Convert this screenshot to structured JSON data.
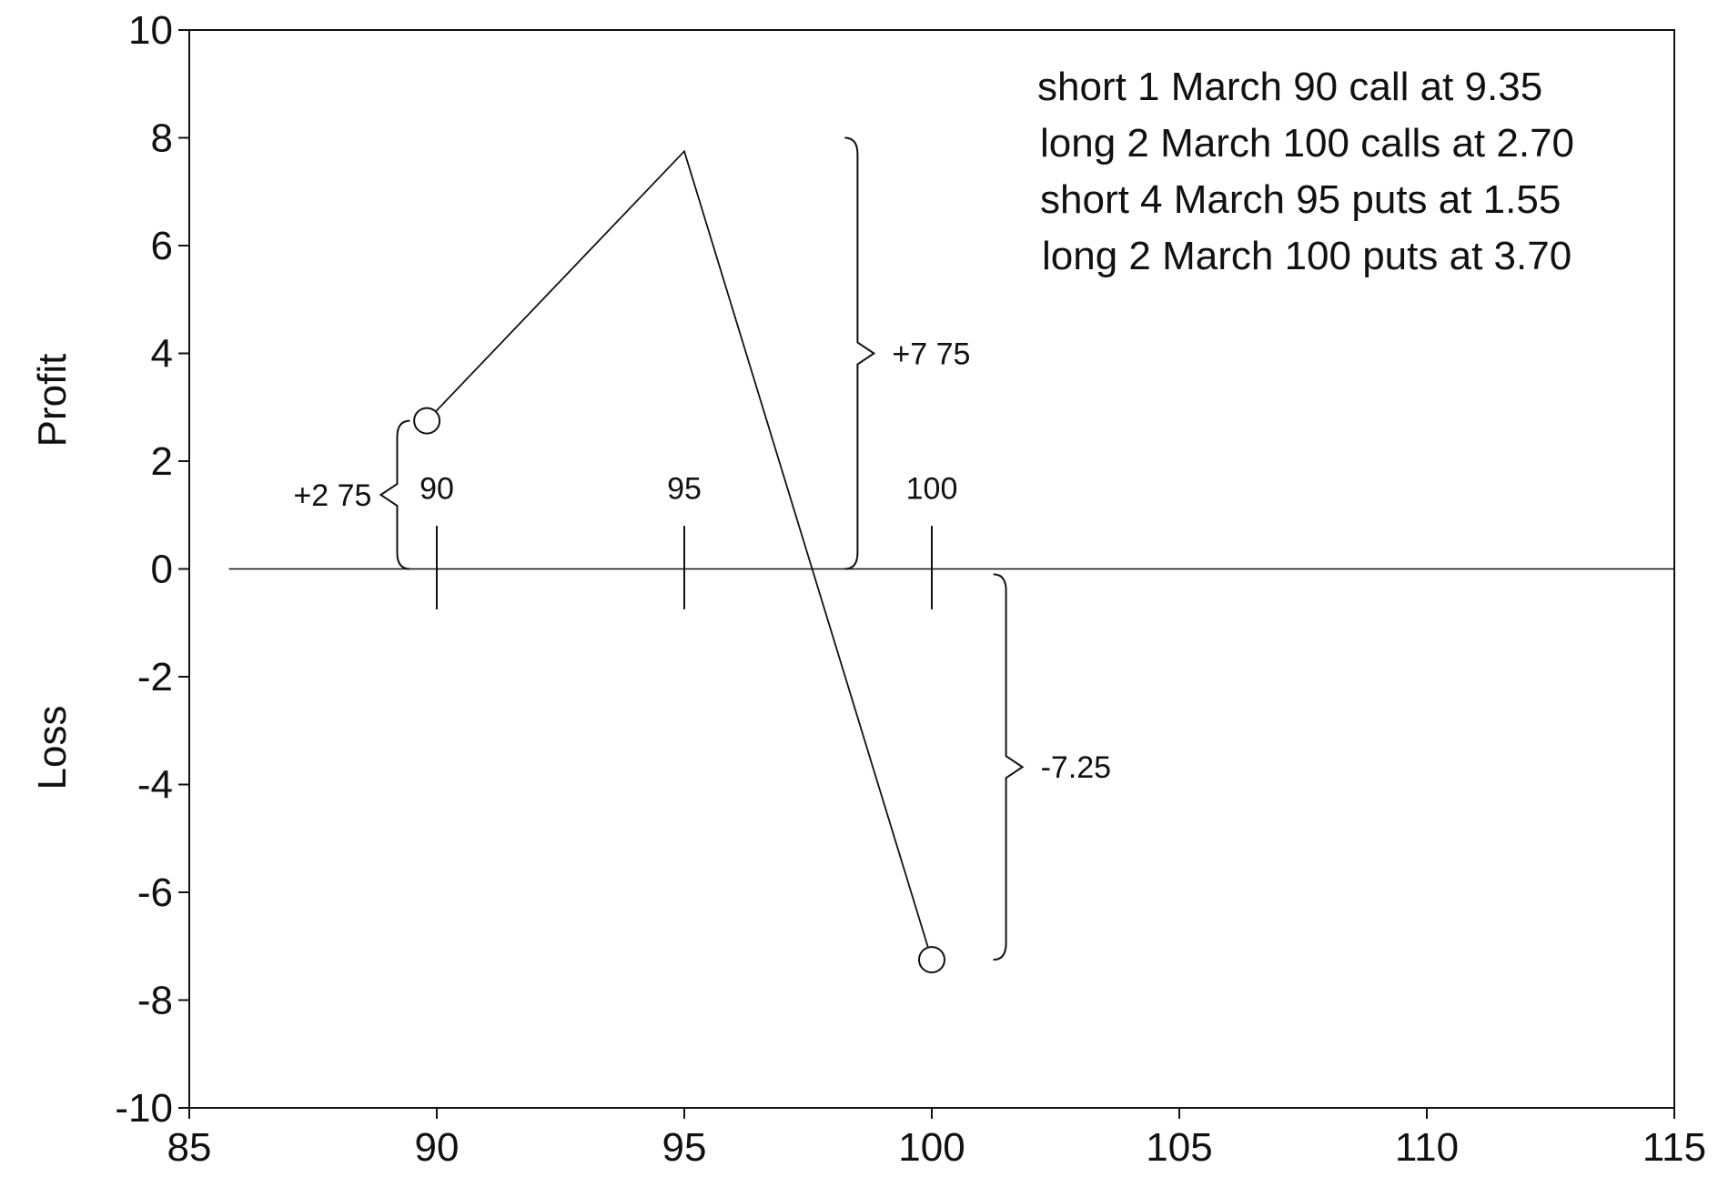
{
  "chart_data": {
    "type": "line",
    "xlim": [
      85,
      115
    ],
    "ylim": [
      -10,
      10
    ],
    "x_ticks": [
      85,
      90,
      95,
      100,
      105,
      110,
      115
    ],
    "y_ticks": [
      10,
      8,
      6,
      4,
      2,
      0,
      -2,
      -4,
      -6,
      -8,
      -10
    ],
    "ylabel_top": "Profit",
    "ylabel_bottom": "Loss",
    "series": [
      {
        "x": [
          89.8,
          95,
          100
        ],
        "y": [
          2.75,
          7.75,
          -7.25
        ]
      }
    ],
    "markers": [
      {
        "x": 89.8,
        "y": 2.75
      },
      {
        "x": 100,
        "y": -7.25
      }
    ],
    "legend_text": [
      "short 1 March 90 call at 9.35",
      "long 2 March 100 calls at 2.70",
      "short 4 March 95 puts at 1.55",
      "long 2 March 100 puts at 3.70"
    ],
    "strike_labels": [
      {
        "x": 90,
        "label": "90"
      },
      {
        "x": 95,
        "label": "95"
      },
      {
        "x": 100,
        "label": "100"
      }
    ],
    "annotations": [
      {
        "label": "+2 75",
        "brace_from": 0,
        "brace_to": 2.75,
        "x": 89.2,
        "side": "left"
      },
      {
        "label": "+7 75",
        "brace_from": 0,
        "brace_to": 8,
        "x": 98.5,
        "side": "right"
      },
      {
        "label": "-7.25",
        "brace_from": -0.1,
        "brace_to": -7.25,
        "x": 101.5,
        "side": "right"
      }
    ],
    "grid": false
  }
}
